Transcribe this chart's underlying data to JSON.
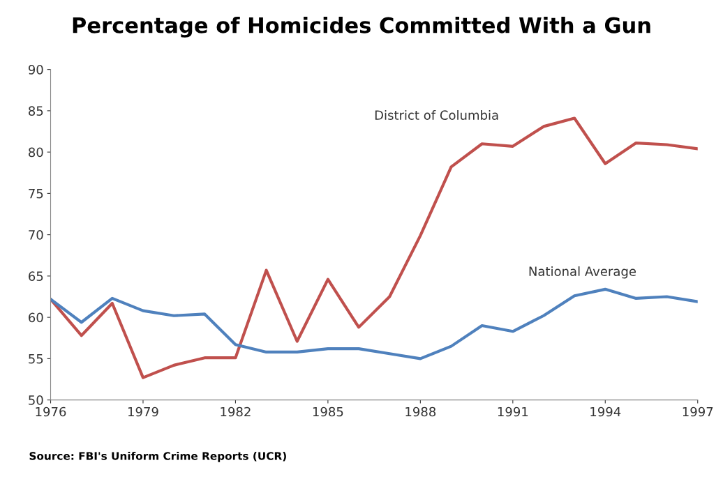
{
  "chart_data": {
    "type": "line",
    "title": "Percentage of Homicides Committed With a Gun",
    "x": [
      1976,
      1977,
      1978,
      1979,
      1980,
      1981,
      1982,
      1983,
      1984,
      1985,
      1986,
      1987,
      1988,
      1989,
      1990,
      1991,
      1992,
      1993,
      1994,
      1995,
      1996,
      1997
    ],
    "series": [
      {
        "name": "District of Columbia",
        "color": "#c0504d",
        "values": [
          62.2,
          57.8,
          61.7,
          52.7,
          54.2,
          55.1,
          55.1,
          65.7,
          57.1,
          64.6,
          58.8,
          62.5,
          69.9,
          78.2,
          81.0,
          80.7,
          83.1,
          84.1,
          78.6,
          81.1,
          80.9,
          80.4
        ]
      },
      {
        "name": "National Average",
        "color": "#4f81bd",
        "values": [
          62.2,
          59.4,
          62.3,
          60.8,
          60.2,
          60.4,
          56.7,
          55.8,
          55.8,
          56.2,
          56.2,
          55.6,
          55.0,
          56.5,
          59.0,
          58.3,
          60.2,
          62.6,
          63.4,
          62.3,
          62.5,
          61.9
        ]
      }
    ],
    "xlim": [
      1976,
      1997
    ],
    "xticks": [
      1976,
      1979,
      1982,
      1985,
      1988,
      1991,
      1994,
      1997
    ],
    "ylim": [
      50,
      90
    ],
    "yticks": [
      50,
      55,
      60,
      65,
      70,
      75,
      80,
      85,
      90
    ],
    "grid": false,
    "legend": false,
    "marker": "none",
    "line_style": "solid",
    "annotations": [
      "Source: FBI's Uniform Crime Reports (UCR)"
    ]
  }
}
